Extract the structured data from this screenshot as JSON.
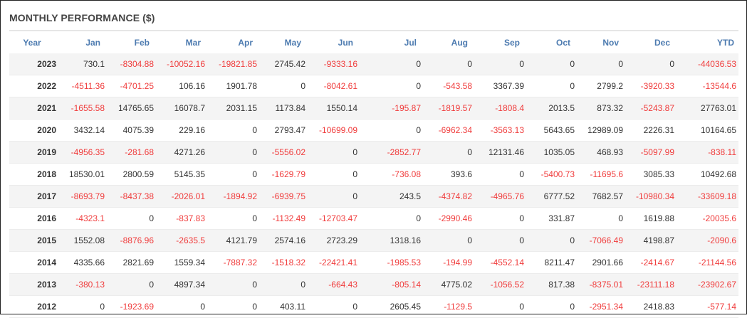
{
  "title": "MONTHLY PERFORMANCE ($)",
  "colors": {
    "header": "#4d7bb0",
    "negative": "#f03c3c",
    "positive": "#333333",
    "stripe": "#f4f4f4"
  },
  "columns": [
    "Year",
    "Jan",
    "Feb",
    "Mar",
    "Apr",
    "May",
    "Jun",
    "Jul",
    "Aug",
    "Sep",
    "Oct",
    "Nov",
    "Dec",
    "YTD"
  ],
  "rows": [
    [
      "2023",
      "730.1",
      "-8304.88",
      "-10052.16",
      "-19821.85",
      "2745.42",
      "-9333.16",
      "0",
      "0",
      "0",
      "0",
      "0",
      "0",
      "-44036.53"
    ],
    [
      "2022",
      "-4511.36",
      "-4701.25",
      "106.16",
      "1901.78",
      "0",
      "-8042.61",
      "0",
      "-543.58",
      "3367.39",
      "0",
      "2799.2",
      "-3920.33",
      "-13544.6"
    ],
    [
      "2021",
      "-1655.58",
      "14765.65",
      "16078.7",
      "2031.15",
      "1173.84",
      "1550.14",
      "-195.87",
      "-1819.57",
      "-1808.4",
      "2013.5",
      "873.32",
      "-5243.87",
      "27763.01"
    ],
    [
      "2020",
      "3432.14",
      "4075.39",
      "229.16",
      "0",
      "2793.47",
      "-10699.09",
      "0",
      "-6962.34",
      "-3563.13",
      "5643.65",
      "12989.09",
      "2226.31",
      "10164.65"
    ],
    [
      "2019",
      "-4956.35",
      "-281.68",
      "4271.26",
      "0",
      "-5556.02",
      "0",
      "-2852.77",
      "0",
      "12131.46",
      "1035.05",
      "468.93",
      "-5097.99",
      "-838.11"
    ],
    [
      "2018",
      "18530.01",
      "2800.59",
      "5145.35",
      "0",
      "-1629.79",
      "0",
      "-736.08",
      "393.6",
      "0",
      "-5400.73",
      "-11695.6",
      "3085.33",
      "10492.68"
    ],
    [
      "2017",
      "-8693.79",
      "-8437.38",
      "-2026.01",
      "-1894.92",
      "-6939.75",
      "0",
      "243.5",
      "-4374.82",
      "-4965.76",
      "6777.52",
      "7682.57",
      "-10980.34",
      "-33609.18"
    ],
    [
      "2016",
      "-4323.1",
      "0",
      "-837.83",
      "0",
      "-1132.49",
      "-12703.47",
      "0",
      "-2990.46",
      "0",
      "331.87",
      "0",
      "1619.88",
      "-20035.6"
    ],
    [
      "2015",
      "1552.08",
      "-8876.96",
      "-2635.5",
      "4121.79",
      "2574.16",
      "2723.29",
      "1318.16",
      "0",
      "0",
      "0",
      "-7066.49",
      "4198.87",
      "-2090.6"
    ],
    [
      "2014",
      "4335.66",
      "2821.69",
      "1559.34",
      "-7887.32",
      "-1518.32",
      "-22421.41",
      "-1985.53",
      "-194.99",
      "-4552.14",
      "8211.47",
      "2901.66",
      "-2414.67",
      "-21144.56"
    ],
    [
      "2013",
      "-380.13",
      "0",
      "4897.34",
      "0",
      "0",
      "-664.43",
      "-805.14",
      "4775.02",
      "-1056.52",
      "817.38",
      "-8375.01",
      "-23111.18",
      "-23902.67"
    ],
    [
      "2012",
      "0",
      "-1923.69",
      "0",
      "0",
      "403.11",
      "0",
      "2605.45",
      "-1129.5",
      "0",
      "0",
      "-2951.34",
      "2418.83",
      "-577.14"
    ]
  ]
}
